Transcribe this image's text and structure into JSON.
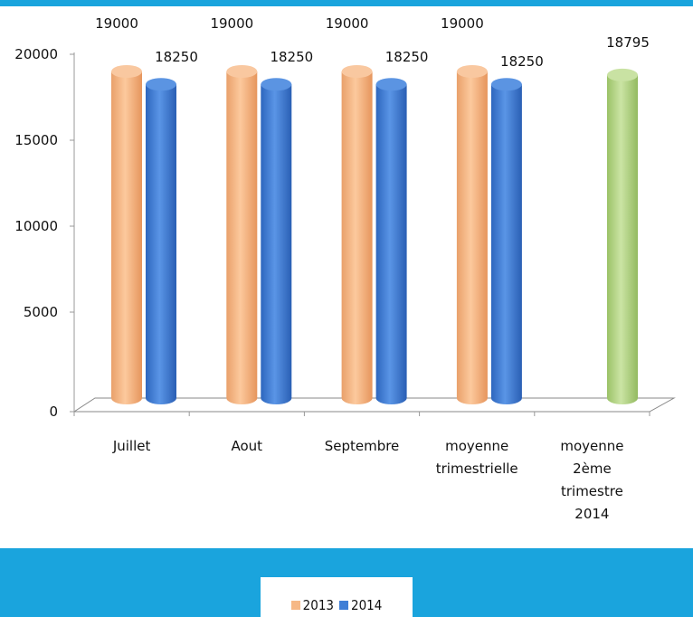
{
  "colors": {
    "frame": "#1aa4dd",
    "series_2013": "#f6b886",
    "series_2014": "#3f7ed6",
    "average_2014": "#b3d483"
  },
  "legend": {
    "item_2013": "2013",
    "item_2014": "2014"
  },
  "chart_data": {
    "type": "bar",
    "title": "",
    "xlabel": "",
    "ylabel": "",
    "ylim": [
      0,
      20000
    ],
    "yticks": [
      0,
      5000,
      10000,
      15000,
      20000
    ],
    "grid": false,
    "legend_position": "bottom",
    "categories": [
      [
        "Juillet"
      ],
      [
        "Aout"
      ],
      [
        "Septembre"
      ],
      [
        "moyenne",
        "trimestrielle"
      ],
      [
        "moyenne",
        "2ème",
        "trimestre",
        "2014"
      ]
    ],
    "series": [
      {
        "name": "2013",
        "values": [
          19000,
          19000,
          19000,
          19000,
          null
        ]
      },
      {
        "name": "2014",
        "values": [
          18250,
          18250,
          18250,
          18250,
          18795
        ]
      }
    ],
    "data_labels": {
      "2013": [
        "19000",
        "19000",
        "19000",
        "19000",
        ""
      ],
      "2014": [
        "18250",
        "18250",
        "18250",
        "18250",
        "18795"
      ]
    }
  }
}
